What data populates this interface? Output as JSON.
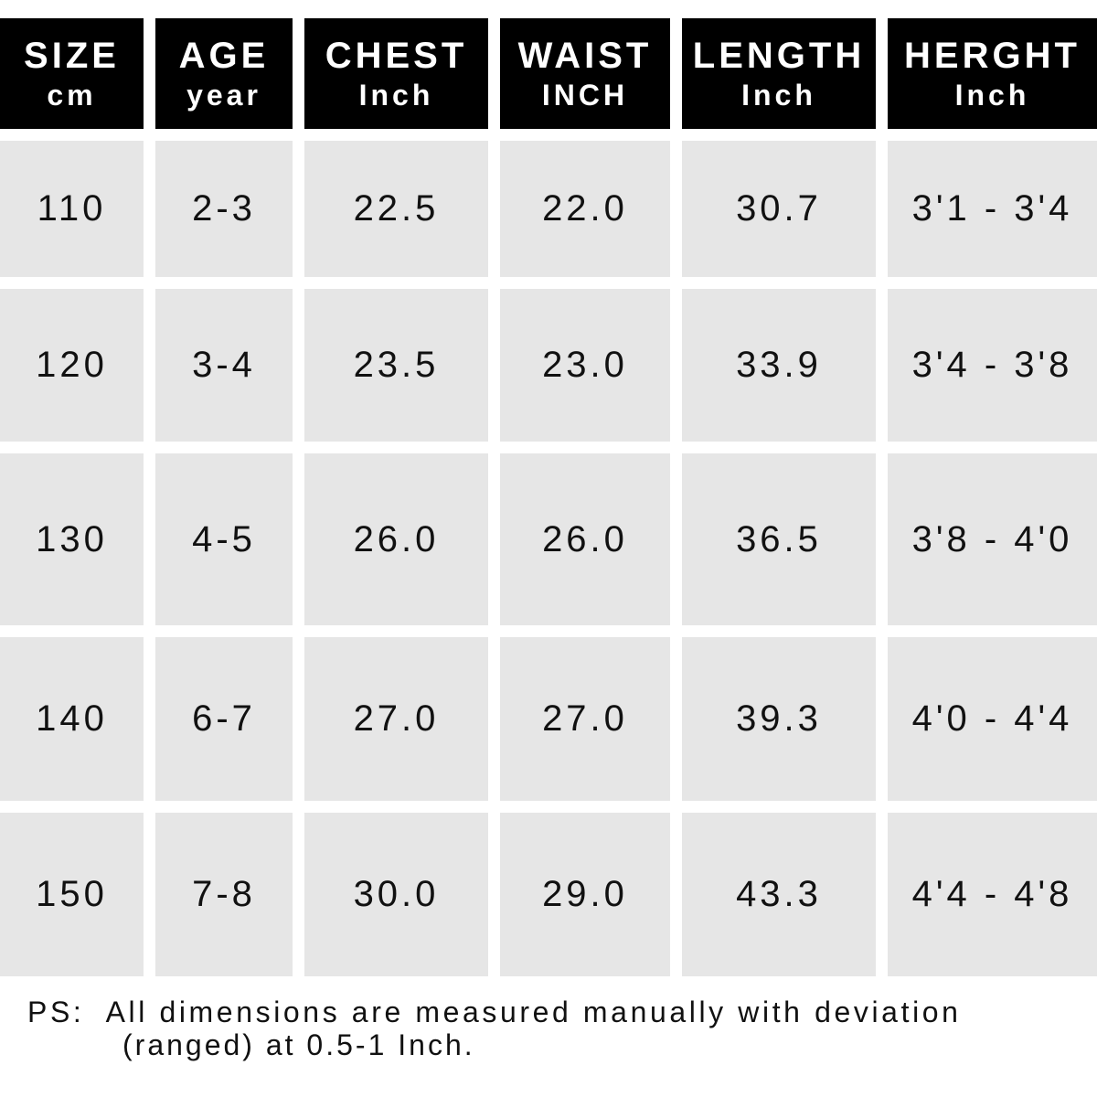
{
  "headers": [
    {
      "main": "SIZE",
      "unit": "cm"
    },
    {
      "main": "AGE",
      "unit": "year"
    },
    {
      "main": "CHEST",
      "unit": "Inch"
    },
    {
      "main": "WAIST",
      "unit": "INCH"
    },
    {
      "main": "LENGTH",
      "unit": "Inch"
    },
    {
      "main": "HERGHT",
      "unit": "Inch"
    }
  ],
  "rows": [
    [
      "110",
      "2-3",
      "22.5",
      "22.0",
      "30.7",
      "3'1 - 3'4"
    ],
    [
      "120",
      "3-4",
      "23.5",
      "23.0",
      "33.9",
      "3'4 - 3'8"
    ],
    [
      "130",
      "4-5",
      "26.0",
      "26.0",
      "36.5",
      "3'8 - 4'0"
    ],
    [
      "140",
      "6-7",
      "27.0",
      "27.0",
      "39.3",
      "4'0 - 4'4"
    ],
    [
      "150",
      "7-8",
      "30.0",
      "29.0",
      "43.3",
      "4'4 - 4'8"
    ]
  ],
  "note": {
    "line1": "PS:  All dimensions are measured manually with deviation",
    "line2": "(ranged) at 0.5-1 Inch."
  }
}
